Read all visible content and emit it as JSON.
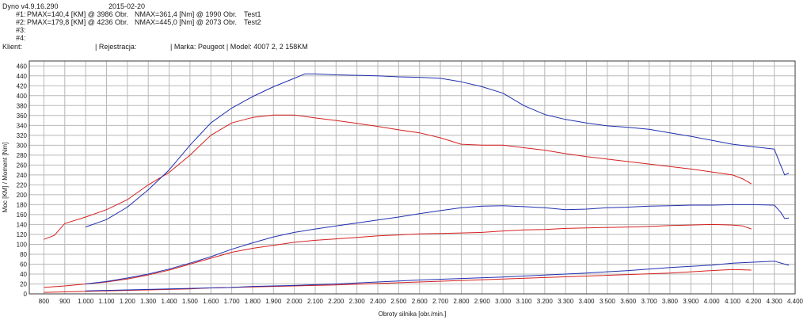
{
  "header": {
    "app": "Dyno v4.9.16.290",
    "date": "2015-02-20",
    "runs": [
      {
        "id": "#1:",
        "pmax": "PMAX=140,4 [KM] @ 3986 Obr.",
        "nmax": "NMAX=361,4 [Nm] @ 1990 Obr.",
        "name": "Test1"
      },
      {
        "id": "#2:",
        "pmax": "PMAX=179,8 [KM] @ 4236 Obr.",
        "nmax": "NMAX=445,0 [Nm] @ 2073 Obr.",
        "name": "Test2"
      },
      {
        "id": "#3:"
      },
      {
        "id": "#4:"
      }
    ],
    "client_label": "Klient:",
    "registration_label": "| Rejestracja:",
    "make_model": "| Marka: Peugeot | Model: 4007 2, 2 158KM"
  },
  "chart_data": {
    "type": "line",
    "xlabel": "Obroty silnika [obr./min.]",
    "ylabel": "Moc [KM] / Moment [Nm]",
    "xlim": [
      730,
      4400
    ],
    "ylim": [
      0,
      470
    ],
    "x_ticks": [
      800,
      900,
      1000,
      1100,
      1200,
      1300,
      1400,
      1500,
      1600,
      1700,
      1800,
      1900,
      2000,
      2100,
      2200,
      2300,
      2400,
      2500,
      2600,
      2700,
      2800,
      2900,
      3000,
      3100,
      3200,
      3300,
      3400,
      3500,
      3600,
      3700,
      3800,
      3900,
      4000,
      4100,
      4200,
      4300,
      4400
    ],
    "x_tick_labels": [
      "800",
      "900",
      "1.000",
      "1.100",
      "1.200",
      "1.300",
      "1.400",
      "1.500",
      "1.600",
      "1.700",
      "1.800",
      "1.900",
      "2.000",
      "2.100",
      "2.200",
      "2.300",
      "2.400",
      "2.500",
      "2.600",
      "2.700",
      "2.800",
      "2.900",
      "3.000",
      "3.100",
      "3.200",
      "3.300",
      "3.400",
      "3.500",
      "3.600",
      "3.700",
      "3.800",
      "3.900",
      "4.000",
      "4.100",
      "4.200",
      "4.300",
      "4.400"
    ],
    "y_ticks": [
      0,
      20,
      40,
      60,
      80,
      100,
      120,
      140,
      160,
      180,
      200,
      220,
      240,
      260,
      280,
      300,
      320,
      340,
      360,
      380,
      400,
      420,
      440,
      460
    ],
    "grid": true,
    "colors": {
      "test1": "#d62020",
      "test2": "#2030b0",
      "grid": "#b8b8b8",
      "frame": "#3a3a3a"
    },
    "series": [
      {
        "name": "Test1",
        "color": "#d62020",
        "x": [
          800,
          850,
          900,
          1000,
          1100,
          1200,
          1300,
          1400,
          1500,
          1600,
          1700,
          1800,
          1900,
          2000,
          2100,
          2200,
          2300,
          2400,
          2500,
          2600,
          2700,
          2800,
          2900,
          3000,
          3100,
          3200,
          3300,
          3400,
          3500,
          3600,
          3700,
          3800,
          3900,
          4000,
          4100,
          4150,
          4190
        ],
        "y": [
          110,
          118,
          142,
          155,
          170,
          190,
          220,
          245,
          280,
          320,
          345,
          356,
          361,
          361,
          355,
          350,
          344,
          338,
          331,
          325,
          315,
          302,
          300,
          300,
          295,
          290,
          283,
          277,
          272,
          267,
          262,
          257,
          252,
          246,
          240,
          232,
          222
        ]
      },
      {
        "name": "Test2",
        "color": "#2030b0",
        "x": [
          1000,
          1100,
          1200,
          1300,
          1400,
          1500,
          1600,
          1700,
          1800,
          1900,
          2000,
          2050,
          2100,
          2200,
          2300,
          2400,
          2500,
          2600,
          2700,
          2800,
          2900,
          3000,
          3100,
          3200,
          3300,
          3400,
          3500,
          3600,
          3700,
          3800,
          3900,
          4000,
          4100,
          4200,
          4300,
          4330,
          4350,
          4370
        ],
        "y": [
          135,
          150,
          175,
          210,
          250,
          300,
          345,
          375,
          398,
          418,
          435,
          444,
          444,
          442,
          441,
          440,
          438,
          437,
          435,
          428,
          418,
          405,
          380,
          362,
          352,
          345,
          339,
          336,
          332,
          325,
          318,
          310,
          302,
          297,
          292,
          260,
          240,
          244
        ]
      },
      {
        "name": "Test1",
        "color": "#d62020",
        "x": [
          800,
          900,
          1000,
          1100,
          1200,
          1300,
          1400,
          1500,
          1600,
          1700,
          1800,
          1900,
          2000,
          2100,
          2200,
          2300,
          2400,
          2500,
          2600,
          2700,
          2800,
          2900,
          3000,
          3100,
          3200,
          3300,
          3400,
          3500,
          3600,
          3700,
          3800,
          3900,
          4000,
          4100,
          4150,
          4190
        ],
        "y": [
          13,
          16,
          20,
          24,
          30,
          38,
          48,
          60,
          72,
          84,
          92,
          98,
          104,
          108,
          111,
          114,
          117,
          119,
          121,
          122,
          123,
          124,
          127,
          129,
          130,
          132,
          133,
          134,
          135,
          136,
          138,
          139,
          140,
          139,
          137,
          131
        ]
      },
      {
        "name": "Test2",
        "color": "#2030b0",
        "x": [
          1000,
          1100,
          1200,
          1300,
          1400,
          1500,
          1600,
          1700,
          1800,
          1900,
          2000,
          2100,
          2200,
          2300,
          2400,
          2500,
          2600,
          2700,
          2800,
          2900,
          3000,
          3100,
          3200,
          3300,
          3400,
          3500,
          3600,
          3700,
          3800,
          3900,
          4000,
          4100,
          4200,
          4300,
          4330,
          4350,
          4370
        ],
        "y": [
          20,
          25,
          32,
          40,
          50,
          62,
          75,
          90,
          103,
          115,
          124,
          131,
          137,
          143,
          149,
          155,
          162,
          168,
          174,
          177,
          178,
          176,
          174,
          170,
          171,
          174,
          175,
          177,
          178,
          179,
          179,
          180,
          180,
          179,
          165,
          152,
          153
        ]
      },
      {
        "name": "Test1",
        "color": "#d62020",
        "x": [
          800,
          900,
          1000,
          1100,
          1200,
          1300,
          1400,
          1500,
          1600,
          1700,
          1800,
          1900,
          2000,
          2200,
          2400,
          2600,
          2800,
          3000,
          3200,
          3400,
          3600,
          3800,
          4000,
          4100,
          4190
        ],
        "y": [
          3,
          4,
          5,
          6,
          7,
          8,
          9,
          10,
          12,
          13,
          14,
          15,
          16,
          18,
          21,
          24,
          27,
          30,
          33,
          36,
          39,
          42,
          47,
          49,
          48
        ]
      },
      {
        "name": "Test2",
        "color": "#2030b0",
        "x": [
          1000,
          1100,
          1200,
          1300,
          1400,
          1500,
          1600,
          1700,
          1800,
          1900,
          2000,
          2200,
          2400,
          2600,
          2800,
          3000,
          3200,
          3400,
          3600,
          3800,
          4000,
          4100,
          4200,
          4300,
          4350,
          4370
        ],
        "y": [
          6,
          7,
          8,
          9,
          10,
          11,
          12,
          13,
          15,
          16,
          17,
          20,
          24,
          28,
          31,
          34,
          38,
          42,
          47,
          53,
          58,
          62,
          64,
          66,
          60,
          58
        ]
      }
    ]
  }
}
